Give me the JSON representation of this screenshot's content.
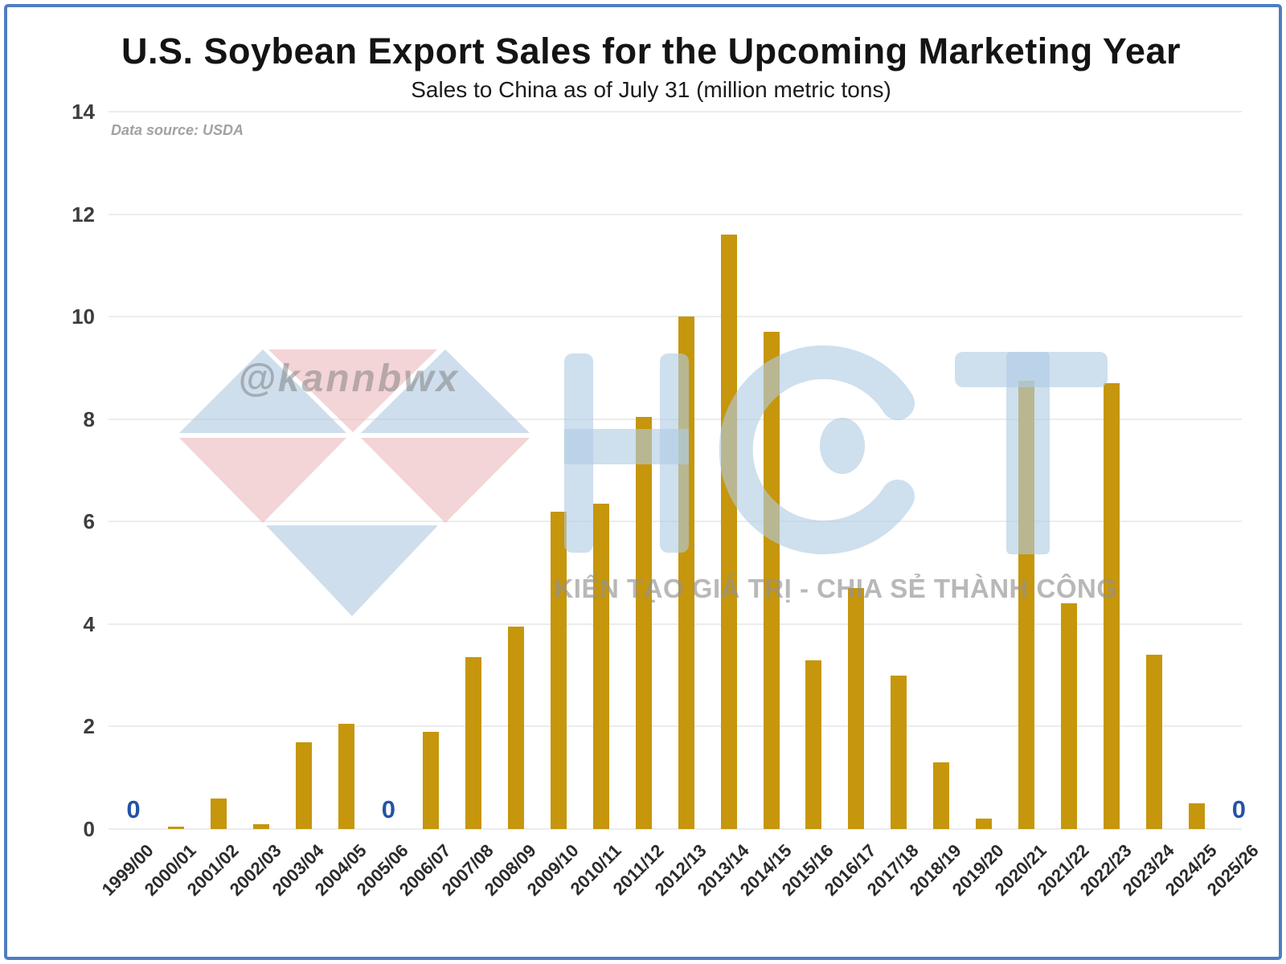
{
  "header": {
    "title": "U.S. Soybean Export Sales for the Upcoming Marketing Year",
    "subtitle": "Sales to China as of July 31 (million metric tons)",
    "data_source": "Data source: USDA"
  },
  "watermarks": {
    "handle": "@kannbwx",
    "logo_text": "HCT",
    "slogan": "KIẾN TẠO GIÁ TRỊ - CHIA SẺ THÀNH CÔNG"
  },
  "colors": {
    "bar": "#C6960C",
    "zero_label": "#2453A6",
    "frame_border": "#4F7DC2",
    "gridline": "#ECECEC",
    "logo_blue": "rgba(176,203,227,0.62)",
    "gem_blue": "rgba(173,200,225,0.6)",
    "gem_pink": "rgba(236,186,190,0.62)"
  },
  "chart_data": {
    "type": "bar",
    "title": "U.S. Soybean Export Sales for the Upcoming Marketing Year",
    "subtitle": "Sales to China as of July 31 (million metric tons)",
    "xlabel": "",
    "ylabel": "",
    "ylim": [
      0,
      14
    ],
    "yticks": [
      0,
      2,
      4,
      6,
      8,
      10,
      12,
      14
    ],
    "grid": true,
    "legend": false,
    "zero_marker_text": "0",
    "categories": [
      "1999/00",
      "2000/01",
      "2001/02",
      "2002/03",
      "2003/04",
      "2004/05",
      "2005/06",
      "2006/07",
      "2007/08",
      "2008/09",
      "2009/10",
      "2010/11",
      "2011/12",
      "2012/13",
      "2013/14",
      "2014/15",
      "2015/16",
      "2016/17",
      "2017/18",
      "2018/19",
      "2019/20",
      "2020/21",
      "2021/22",
      "2022/23",
      "2023/24",
      "2024/25",
      "2025/26"
    ],
    "values": [
      0,
      0.05,
      0.6,
      0.1,
      1.7,
      2.05,
      0,
      1.9,
      3.35,
      3.95,
      6.2,
      6.35,
      8.05,
      10.0,
      11.6,
      9.7,
      3.3,
      4.7,
      3.0,
      1.3,
      0.2,
      8.75,
      4.4,
      8.7,
      3.4,
      0.5,
      0
    ]
  }
}
